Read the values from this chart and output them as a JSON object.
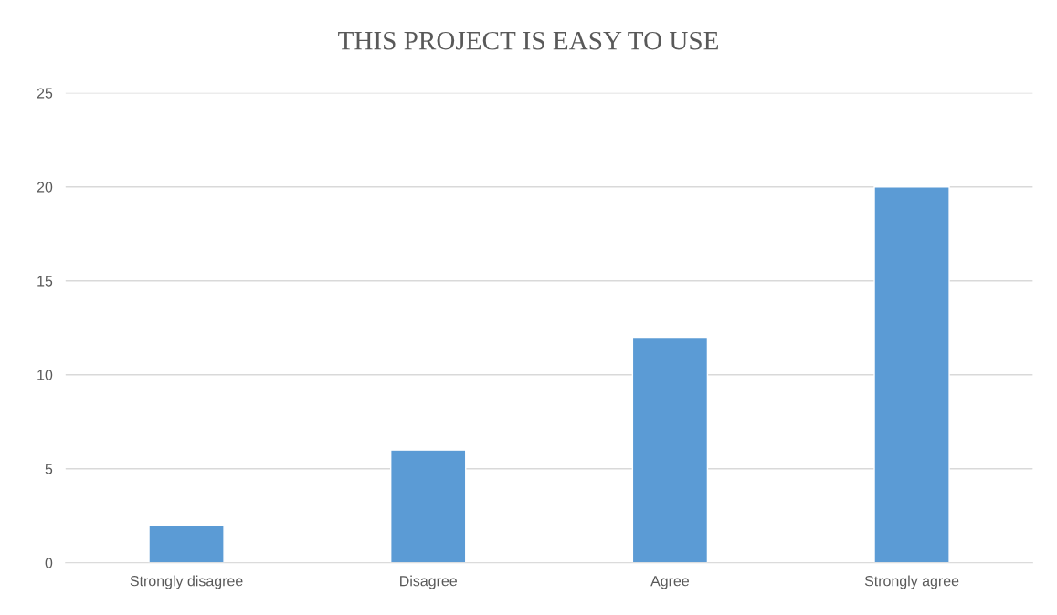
{
  "chart_data": {
    "type": "bar",
    "title": "THIS PROJECT IS EASY TO USE",
    "categories": [
      "Strongly disagree",
      "Disagree",
      "Agree",
      "Strongly agree"
    ],
    "values": [
      2,
      6,
      12,
      20
    ],
    "color": "#5b9bd5",
    "ylim": [
      0,
      25
    ],
    "yticks": [
      0,
      5,
      10,
      15,
      20,
      25
    ],
    "grid": "y",
    "legend": false
  }
}
